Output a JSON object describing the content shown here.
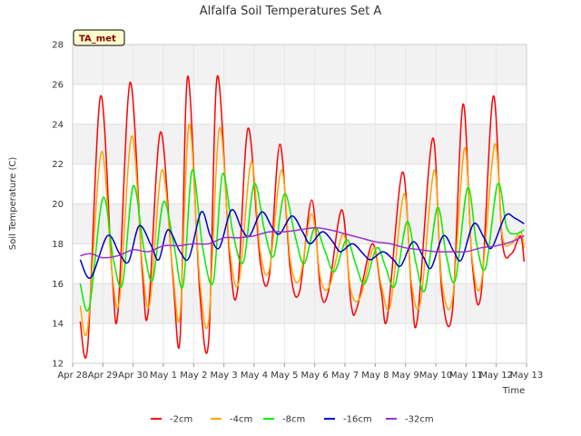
{
  "chart_data": {
    "type": "line",
    "title": "Alfalfa Soil Temperatures Set A",
    "xlabel": "Time",
    "ylabel": "Soil Temperature (C)",
    "badge": "TA_met",
    "ylim": [
      12,
      28
    ],
    "yticks": [
      12,
      14,
      16,
      18,
      20,
      22,
      24,
      26,
      28
    ],
    "xlim": [
      0,
      15
    ],
    "xticks": [
      0,
      1,
      2,
      3,
      4,
      5,
      6,
      7,
      8,
      9,
      10,
      11,
      12,
      13,
      14,
      15
    ],
    "xtick_labels": [
      "Apr 28",
      "Apr 29",
      "Apr 30",
      "May 1",
      "May 2",
      "May 3",
      "May 4",
      "May 5",
      "May 6",
      "May 7",
      "May 8",
      "May 9",
      "May 10",
      "May 11",
      "May 12",
      "May 13"
    ],
    "x_unit": "days since Apr 28",
    "grid": true,
    "legend_position": "bottom",
    "series": [
      {
        "name": "-2cm",
        "color": "#ff0000",
        "x": [
          0.25,
          0.5,
          0.92,
          1.3,
          1.5,
          1.9,
          2.3,
          2.5,
          2.9,
          3.3,
          3.55,
          3.8,
          4.2,
          4.5,
          4.78,
          5.2,
          5.45,
          5.8,
          6.2,
          6.5,
          6.85,
          7.2,
          7.5,
          7.9,
          8.2,
          8.45,
          8.9,
          9.2,
          9.4,
          9.9,
          10.2,
          10.4,
          10.9,
          11.2,
          11.4,
          11.9,
          12.2,
          12.55,
          12.9,
          13.2,
          13.5,
          13.9,
          14.2,
          14.5,
          14.8,
          14.92
        ],
        "y": [
          14.1,
          12.9,
          25.4,
          16.6,
          14.6,
          26.1,
          16.6,
          14.6,
          23.6,
          16.6,
          13.2,
          26.4,
          15.6,
          13.2,
          26.4,
          17.1,
          15.7,
          23.8,
          17.1,
          16.4,
          23.0,
          16.6,
          15.6,
          20.2,
          15.6,
          15.6,
          19.7,
          15.0,
          14.8,
          18.0,
          15.6,
          14.3,
          21.6,
          15.6,
          14.3,
          23.3,
          15.6,
          14.6,
          25.0,
          17.1,
          15.5,
          25.4,
          18.1,
          17.5,
          18.4,
          17.1
        ]
      },
      {
        "name": "-4cm",
        "color": "#ffa500",
        "x": [
          0.25,
          0.5,
          0.95,
          1.3,
          1.55,
          1.95,
          2.3,
          2.55,
          2.95,
          3.3,
          3.55,
          3.85,
          4.2,
          4.5,
          4.85,
          5.2,
          5.5,
          5.9,
          6.2,
          6.5,
          6.9,
          7.2,
          7.5,
          7.9,
          8.2,
          8.5,
          8.95,
          9.2,
          9.5,
          9.95,
          10.2,
          10.5,
          10.95,
          11.2,
          11.5,
          11.95,
          12.2,
          12.55,
          12.95,
          13.2,
          13.5,
          13.95,
          14.2,
          14.5,
          14.8,
          14.92
        ],
        "y": [
          14.9,
          13.8,
          22.6,
          16.6,
          15.2,
          23.4,
          17.0,
          15.0,
          21.7,
          16.8,
          14.4,
          24.0,
          16.2,
          14.2,
          23.8,
          17.6,
          16.1,
          22.1,
          17.6,
          16.7,
          21.7,
          17.1,
          16.2,
          19.5,
          16.2,
          15.9,
          18.5,
          15.6,
          15.3,
          17.8,
          15.9,
          14.9,
          20.5,
          16.0,
          15.1,
          21.7,
          16.1,
          15.2,
          22.8,
          17.3,
          16.0,
          23.0,
          18.4,
          18.0,
          18.6,
          17.8
        ]
      },
      {
        "name": "-8cm",
        "color": "#00ee00",
        "x": [
          0.25,
          0.55,
          1.0,
          1.35,
          1.65,
          2.0,
          2.35,
          2.65,
          3.0,
          3.35,
          3.65,
          3.95,
          4.3,
          4.65,
          4.95,
          5.3,
          5.65,
          6.0,
          6.35,
          6.65,
          7.0,
          7.35,
          7.65,
          8.0,
          8.35,
          8.65,
          9.05,
          9.35,
          9.65,
          10.05,
          10.35,
          10.65,
          11.05,
          11.35,
          11.65,
          12.05,
          12.35,
          12.65,
          13.05,
          13.35,
          13.65,
          14.05,
          14.35,
          14.65,
          14.92
        ],
        "y": [
          16.0,
          14.8,
          20.3,
          17.2,
          16.0,
          20.9,
          17.8,
          16.2,
          20.1,
          17.9,
          15.9,
          21.7,
          17.8,
          16.1,
          21.5,
          18.5,
          17.1,
          21.0,
          18.6,
          17.4,
          20.5,
          18.4,
          17.0,
          18.8,
          17.6,
          16.6,
          18.2,
          17.0,
          16.0,
          17.8,
          16.8,
          15.9,
          19.1,
          17.0,
          15.7,
          19.8,
          17.4,
          16.2,
          20.8,
          18.0,
          16.8,
          21.0,
          18.8,
          18.5,
          18.7
        ]
      },
      {
        "name": "-16cm",
        "color": "#0000cc",
        "x": [
          0.25,
          0.6,
          1.15,
          1.55,
          1.85,
          2.2,
          2.6,
          2.85,
          3.15,
          3.55,
          3.85,
          4.25,
          4.55,
          4.85,
          5.25,
          5.6,
          5.85,
          6.25,
          6.6,
          6.85,
          7.25,
          7.6,
          7.85,
          8.25,
          8.6,
          8.85,
          9.25,
          9.6,
          9.85,
          10.25,
          10.6,
          10.85,
          11.25,
          11.6,
          11.85,
          12.25,
          12.6,
          12.85,
          13.25,
          13.6,
          13.85,
          14.3,
          14.6,
          14.92
        ],
        "y": [
          17.2,
          16.3,
          18.4,
          17.5,
          17.1,
          18.9,
          17.9,
          17.2,
          18.7,
          17.6,
          17.3,
          19.6,
          18.4,
          17.8,
          19.7,
          18.7,
          18.4,
          19.6,
          18.8,
          18.5,
          19.4,
          18.6,
          18.0,
          18.6,
          18.1,
          17.6,
          18.0,
          17.5,
          17.2,
          17.6,
          17.2,
          16.9,
          18.1,
          17.3,
          16.8,
          18.4,
          17.6,
          17.2,
          19.0,
          18.3,
          17.8,
          19.4,
          19.3,
          19.0
        ]
      },
      {
        "name": "-32cm",
        "color": "#9932cc",
        "x": [
          0.25,
          0.6,
          1.0,
          1.5,
          2.0,
          2.5,
          3.0,
          3.5,
          4.0,
          4.5,
          5.0,
          5.5,
          6.0,
          6.5,
          7.0,
          7.5,
          8.0,
          8.5,
          9.0,
          9.5,
          10.0,
          10.5,
          11.0,
          11.5,
          12.0,
          12.5,
          13.0,
          13.5,
          14.0,
          14.5,
          14.92
        ],
        "y": [
          17.4,
          17.5,
          17.3,
          17.4,
          17.7,
          17.6,
          17.9,
          17.9,
          18.0,
          18.0,
          18.3,
          18.3,
          18.4,
          18.6,
          18.6,
          18.7,
          18.8,
          18.7,
          18.5,
          18.3,
          18.1,
          18.0,
          17.8,
          17.7,
          17.6,
          17.6,
          17.6,
          17.8,
          17.9,
          18.1,
          18.4
        ]
      }
    ]
  }
}
